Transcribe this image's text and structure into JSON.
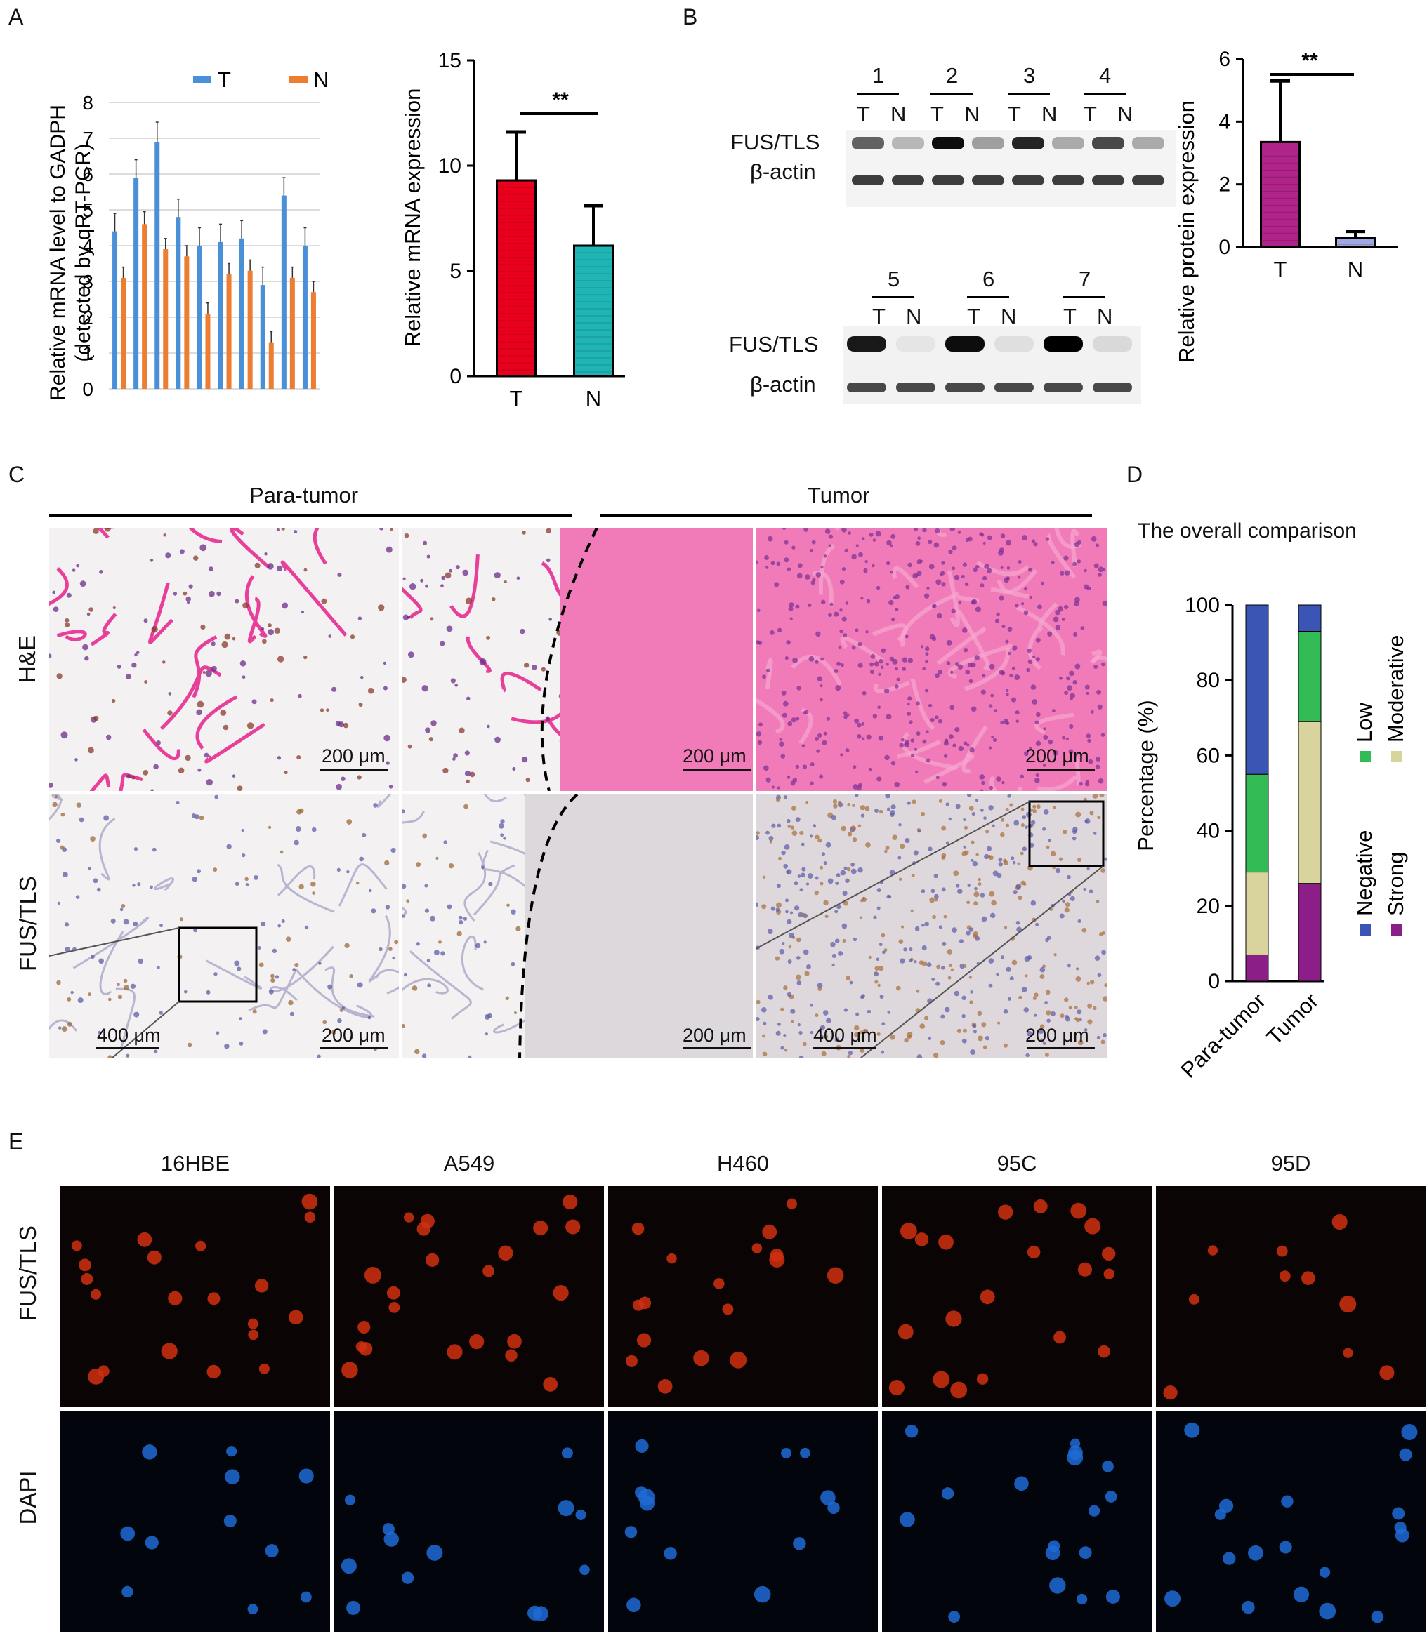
{
  "panels": {
    "a_letter": "A",
    "b_letter": "B",
    "c_letter": "C",
    "d_letter": "D",
    "e_letter": "E"
  },
  "panel_a": {
    "legend_t": "T",
    "legend_n": "N",
    "ylabel_line1": "Relative mRNA level to GADPH",
    "ylabel_line2": "(detected by qRT-PCR)",
    "bar_ylabel": "Relative mRNA expression",
    "significance": "**",
    "colors": {
      "t": "#4a90d9",
      "n": "#ed7d31",
      "bar_t": "#e8001c",
      "bar_n": "#1fb5b5"
    }
  },
  "panel_b": {
    "blot_top_lanes": [
      "1",
      "2",
      "3",
      "4"
    ],
    "blot_bottom_lanes": [
      "5",
      "6",
      "7"
    ],
    "t_label": "T",
    "n_label": "N",
    "fus_label": "FUS/TLS",
    "actin_label": "β-actin",
    "bar_ylabel": "Relative protein expression",
    "significance": "**",
    "colors": {
      "bar_t": "#b0248a",
      "bar_n": "#9fa8e0"
    }
  },
  "panel_c": {
    "para_tumor": "Para-tumor",
    "tumor": "Tumor",
    "row_he": "H&E",
    "row_fus": "FUS/TLS",
    "scale_200": "200 μm",
    "scale_400": "400 μm"
  },
  "panel_d": {
    "title": "The overall comparison",
    "ylabel": "Percentage (%)",
    "legend": [
      "Negative",
      "Strong",
      "Low",
      "Moderative"
    ],
    "colors": {
      "negative": "#3a55b4",
      "low": "#33bb55",
      "moderative": "#d9d49e",
      "strong": "#8b1e87"
    }
  },
  "panel_e": {
    "columns": [
      "16HBE",
      "A549",
      "H460",
      "95C",
      "95D"
    ],
    "row_fus": "FUS/TLS",
    "row_dapi": "DAPI"
  },
  "chart_data": [
    {
      "type": "bar",
      "id": "A-left",
      "ylabel": "Relative mRNA level to GADPH (detected by qRT-PCR)",
      "ylim": [
        0,
        8
      ],
      "yticks": [
        0,
        1,
        2,
        3,
        4,
        5,
        6,
        7,
        8
      ],
      "grid": true,
      "legend_position": "top",
      "series": [
        {
          "name": "T",
          "values": [
            4.4,
            5.9,
            6.9,
            4.8,
            4.0,
            4.1,
            4.2,
            2.9,
            5.4,
            4.0
          ],
          "errors": [
            0.5,
            0.5,
            0.55,
            0.5,
            0.5,
            0.5,
            0.5,
            0.5,
            0.5,
            0.5
          ]
        },
        {
          "name": "N",
          "values": [
            3.1,
            4.6,
            3.9,
            3.7,
            2.1,
            3.2,
            3.3,
            1.3,
            3.1,
            2.7
          ],
          "errors": [
            0.3,
            0.35,
            0.3,
            0.3,
            0.3,
            0.3,
            0.3,
            0.3,
            0.3,
            0.3
          ]
        }
      ]
    },
    {
      "type": "bar",
      "id": "A-right",
      "ylabel": "Relative mRNA expression",
      "categories": [
        "T",
        "N"
      ],
      "values": [
        9.3,
        6.2
      ],
      "errors": [
        2.3,
        1.9
      ],
      "ylim": [
        0,
        15
      ],
      "yticks": [
        0,
        5,
        10,
        15
      ]
    },
    {
      "type": "bar",
      "id": "B-right",
      "ylabel": "Relative protein expression",
      "categories": [
        "T",
        "N"
      ],
      "values": [
        3.35,
        0.3
      ],
      "errors": [
        1.95,
        0.2
      ],
      "ylim": [
        0,
        6
      ],
      "yticks": [
        0,
        2,
        4,
        6
      ]
    },
    {
      "type": "bar",
      "id": "D",
      "stacked": true,
      "title": "The overall comparison",
      "ylabel": "Percentage (%)",
      "categories": [
        "Para-tumor",
        "Tumor"
      ],
      "ylim": [
        0,
        100
      ],
      "yticks": [
        0,
        20,
        40,
        60,
        80,
        100
      ],
      "series": [
        {
          "name": "Strong",
          "values": [
            7,
            26
          ]
        },
        {
          "name": "Moderative",
          "values": [
            22,
            43
          ]
        },
        {
          "name": "Low",
          "values": [
            26,
            24
          ]
        },
        {
          "name": "Negative",
          "values": [
            45,
            7
          ]
        }
      ]
    }
  ]
}
